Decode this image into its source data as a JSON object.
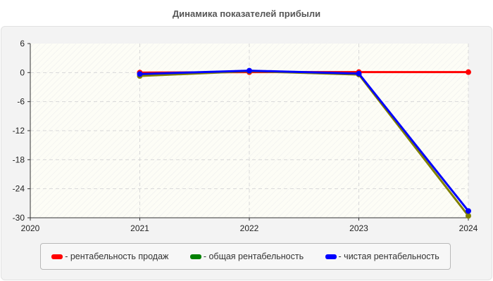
{
  "title": "Динамика показателей прибыли",
  "chart_data": {
    "type": "line",
    "title": "Динамика показателей прибыли",
    "xlabel": "",
    "ylabel": "",
    "x": [
      2020,
      2021,
      2022,
      2023,
      2024
    ],
    "x_ticks": [
      "2020",
      "2021",
      "2022",
      "2023",
      "2024"
    ],
    "y_ticks": [
      "6",
      "0",
      "-6",
      "-12",
      "-18",
      "-24",
      "-30"
    ],
    "ylim": [
      -30,
      6
    ],
    "grid": true,
    "legend_position": "bottom",
    "series": [
      {
        "name": "- рентабельность продаж",
        "color": "#ff0000",
        "x": [
          2021,
          2022,
          2023,
          2024
        ],
        "values": [
          0.0,
          0.1,
          0.1,
          0.1
        ]
      },
      {
        "name": "- общая рентабельность",
        "color": "#008000",
        "marker_color": "#808000",
        "x": [
          2021,
          2022,
          2023,
          2024
        ],
        "values": [
          -0.7,
          0.3,
          -0.4,
          -29.6
        ]
      },
      {
        "name": "- чистая рентабельность",
        "color": "#0000ff",
        "x": [
          2021,
          2022,
          2023,
          2024
        ],
        "values": [
          -0.3,
          0.4,
          -0.2,
          -28.6
        ]
      }
    ]
  },
  "legend": [
    {
      "label": "- рентабельность продаж",
      "color": "#ff0000"
    },
    {
      "label": "- общая рентабельность",
      "color": "#008000"
    },
    {
      "label": "- чистая рентабельность",
      "color": "#0000ff"
    }
  ]
}
